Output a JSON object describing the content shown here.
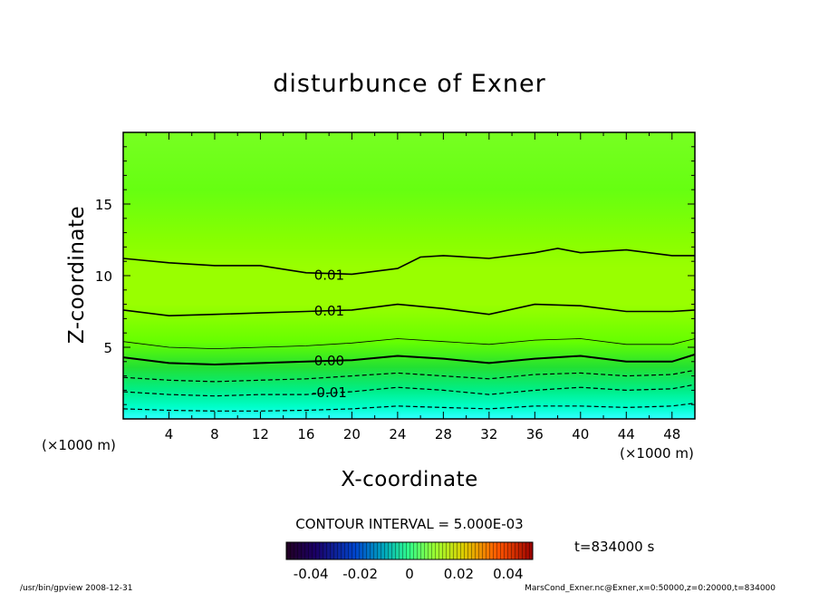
{
  "chart_data": {
    "type": "contour",
    "title": "disturbunce of Exner",
    "xlabel": "X-coordinate",
    "ylabel": "Z-coordinate",
    "x_unit": "(×1000 m)",
    "y_unit": "(×1000 m)",
    "xlim": [
      0,
      50
    ],
    "ylim": [
      0,
      20
    ],
    "x_ticks": [
      4,
      8,
      12,
      16,
      20,
      24,
      28,
      32,
      36,
      40,
      44,
      48
    ],
    "y_ticks": [
      5,
      10,
      15
    ],
    "contour_interval_text": "CONTOUR INTERVAL = 5.000E-03",
    "time_text": "t=834000 s",
    "colorbar": {
      "range": [
        -0.05,
        0.05
      ],
      "labels": [
        "-0.04",
        "-0.02",
        "0",
        "0.02",
        "0.04"
      ],
      "label_values": [
        -0.04,
        -0.02,
        0,
        0.02,
        0.04
      ]
    },
    "contours": [
      {
        "level": -0.015,
        "label": "",
        "style": "dashed",
        "points": [
          [
            0,
            0.7
          ],
          [
            4,
            0.6
          ],
          [
            8,
            0.55
          ],
          [
            12,
            0.55
          ],
          [
            16,
            0.6
          ],
          [
            20,
            0.7
          ],
          [
            24,
            0.9
          ],
          [
            28,
            0.8
          ],
          [
            32,
            0.7
          ],
          [
            36,
            0.9
          ],
          [
            40,
            0.9
          ],
          [
            44,
            0.8
          ],
          [
            48,
            0.9
          ],
          [
            50,
            1.1
          ]
        ]
      },
      {
        "level": -0.01,
        "label": "-0.01",
        "style": "dashed",
        "points": [
          [
            0,
            1.9
          ],
          [
            4,
            1.7
          ],
          [
            8,
            1.6
          ],
          [
            12,
            1.7
          ],
          [
            16,
            1.7
          ],
          [
            20,
            1.9
          ],
          [
            24,
            2.2
          ],
          [
            28,
            2.0
          ],
          [
            32,
            1.7
          ],
          [
            36,
            2.0
          ],
          [
            40,
            2.2
          ],
          [
            44,
            2.0
          ],
          [
            48,
            2.1
          ],
          [
            50,
            2.4
          ]
        ]
      },
      {
        "level": -0.005,
        "label": "",
        "style": "dashed",
        "points": [
          [
            0,
            2.9
          ],
          [
            4,
            2.7
          ],
          [
            8,
            2.6
          ],
          [
            12,
            2.7
          ],
          [
            16,
            2.8
          ],
          [
            20,
            3.0
          ],
          [
            24,
            3.2
          ],
          [
            28,
            3.0
          ],
          [
            32,
            2.8
          ],
          [
            36,
            3.1
          ],
          [
            40,
            3.2
          ],
          [
            44,
            3.0
          ],
          [
            48,
            3.1
          ],
          [
            50,
            3.4
          ]
        ]
      },
      {
        "level": 0.0,
        "label": "0.00",
        "style": "thick",
        "points": [
          [
            0,
            4.3
          ],
          [
            4,
            3.9
          ],
          [
            8,
            3.8
          ],
          [
            12,
            3.9
          ],
          [
            16,
            4.0
          ],
          [
            20,
            4.1
          ],
          [
            24,
            4.4
          ],
          [
            28,
            4.2
          ],
          [
            32,
            3.9
          ],
          [
            36,
            4.2
          ],
          [
            40,
            4.4
          ],
          [
            44,
            4.0
          ],
          [
            48,
            4.0
          ],
          [
            50,
            4.5
          ]
        ]
      },
      {
        "level": 0.005,
        "label": "",
        "style": "thin",
        "points": [
          [
            0,
            5.4
          ],
          [
            4,
            5.0
          ],
          [
            8,
            4.9
          ],
          [
            12,
            5.0
          ],
          [
            16,
            5.1
          ],
          [
            20,
            5.3
          ],
          [
            24,
            5.6
          ],
          [
            28,
            5.4
          ],
          [
            32,
            5.2
          ],
          [
            36,
            5.5
          ],
          [
            40,
            5.6
          ],
          [
            44,
            5.2
          ],
          [
            48,
            5.2
          ],
          [
            50,
            5.6
          ]
        ]
      },
      {
        "level": 0.01,
        "label": "0.01",
        "style": "solid",
        "points": [
          [
            0,
            7.6
          ],
          [
            4,
            7.2
          ],
          [
            8,
            7.3
          ],
          [
            12,
            7.4
          ],
          [
            16,
            7.5
          ],
          [
            20,
            7.6
          ],
          [
            24,
            8.0
          ],
          [
            28,
            7.7
          ],
          [
            32,
            7.3
          ],
          [
            36,
            8.0
          ],
          [
            40,
            7.9
          ],
          [
            44,
            7.5
          ],
          [
            48,
            7.5
          ],
          [
            50,
            7.6
          ]
        ]
      },
      {
        "level": 0.015,
        "label": "0.01",
        "style": "solid",
        "points": [
          [
            0,
            11.2
          ],
          [
            4,
            10.9
          ],
          [
            8,
            10.7
          ],
          [
            12,
            10.7
          ],
          [
            16,
            10.2
          ],
          [
            20,
            10.1
          ],
          [
            24,
            10.5
          ],
          [
            26,
            11.3
          ],
          [
            28,
            11.4
          ],
          [
            32,
            11.2
          ],
          [
            36,
            11.6
          ],
          [
            38,
            11.9
          ],
          [
            40,
            11.6
          ],
          [
            44,
            11.8
          ],
          [
            48,
            11.4
          ],
          [
            50,
            11.4
          ]
        ]
      }
    ]
  },
  "footer": {
    "left": "/usr/bin/gpview   2008-12-31",
    "right": "MarsCond_Exner.nc@Exner,x=0:50000,z=0:20000,t=834000"
  }
}
